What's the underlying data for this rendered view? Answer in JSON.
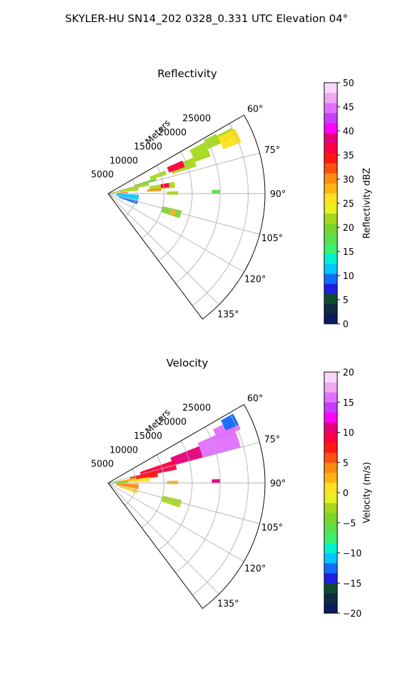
{
  "title": "SKYLER-HU  SN14_202  0328_0.331 UTC Elevation 04°",
  "chart_data": [
    {
      "type": "heatmap",
      "title": "Reflectivity",
      "projection": "polar-sector",
      "theta_range_deg": [
        60,
        143
      ],
      "r_range_m": [
        0,
        28000
      ],
      "angle_ticks": [
        "60°",
        "75°",
        "90°",
        "105°",
        "120°",
        "135°"
      ],
      "angle_tick_values": [
        60,
        75,
        90,
        105,
        120,
        135
      ],
      "radial_ticks": [
        5000,
        10000,
        15000,
        20000,
        25000
      ],
      "radial_tick_labels": [
        "5000",
        "10000",
        "15000",
        "20000",
        "25000"
      ],
      "radial_label": "Meters",
      "grid": true,
      "colorbar": {
        "label": "Reflectivity dBZ",
        "min": 0,
        "max": 50,
        "ticks": [
          0,
          5,
          10,
          15,
          20,
          25,
          30,
          35,
          40,
          45,
          50
        ],
        "tick_labels": [
          "0",
          "5",
          "10",
          "15",
          "20",
          "25",
          "30",
          "35",
          "40",
          "45",
          "50"
        ],
        "colors": [
          "#0c1a5e",
          "#102a40",
          "#0f4d2e",
          "#1f1fe0",
          "#0f6ef7",
          "#00c8ff",
          "#00f0d0",
          "#3ef06e",
          "#5ae04a",
          "#7ad42e",
          "#a6d81e",
          "#e8f01e",
          "#ffe01e",
          "#ffb414",
          "#ff8c10",
          "#ff5010",
          "#ff1810",
          "#ff0040",
          "#e6007a",
          "#ff00ff",
          "#c83cff",
          "#e070ff",
          "#f0a8f0",
          "#f8d8f8"
        ]
      },
      "regions": [
        {
          "theta": [
            61,
            66
          ],
          "r": [
            19500,
            22000
          ],
          "value": 22
        },
        {
          "theta": [
            62,
            66
          ],
          "r": [
            21000,
            25000
          ],
          "value": 21
        },
        {
          "theta": [
            62,
            70
          ],
          "r": [
            16500,
            19500
          ],
          "value": 21
        },
        {
          "theta": [
            67,
            73
          ],
          "r": [
            12000,
            16500
          ],
          "value": 22
        },
        {
          "theta": [
            63,
            69
          ],
          "r": [
            22000,
            25500
          ],
          "value": 27
        },
        {
          "theta": [
            66,
            71
          ],
          "r": [
            11500,
            14500
          ],
          "value": 36
        },
        {
          "theta": [
            68,
            72
          ],
          "r": [
            8000,
            11000
          ],
          "value": 21
        },
        {
          "theta": [
            72,
            75
          ],
          "r": [
            5000,
            9000
          ],
          "value": 20
        },
        {
          "theta": [
            75,
            79
          ],
          "r": [
            2000,
            7500
          ],
          "value": 22
        },
        {
          "theta": [
            79,
            84
          ],
          "r": [
            600,
            5500
          ],
          "value": 21
        },
        {
          "theta": [
            80,
            85
          ],
          "r": [
            7500,
            12000
          ],
          "value": 22
        },
        {
          "theta": [
            80,
            84
          ],
          "r": [
            9500,
            11000
          ],
          "value": 37
        },
        {
          "theta": [
            84,
            87
          ],
          "r": [
            7000,
            9500
          ],
          "value": 31
        },
        {
          "theta": [
            86,
            89
          ],
          "r": [
            1500,
            3500
          ],
          "value": 33
        },
        {
          "theta": [
            84,
            89
          ],
          "r": [
            0,
            1200
          ],
          "value": 31
        },
        {
          "theta": [
            88,
            91
          ],
          "r": [
            10500,
            12500
          ],
          "value": 21
        },
        {
          "theta": [
            88,
            90
          ],
          "r": [
            18500,
            20000
          ],
          "value": 18
        },
        {
          "theta": [
            92,
            102
          ],
          "r": [
            1500,
            5500
          ],
          "value": 11
        },
        {
          "theta": [
            103,
            110
          ],
          "r": [
            2000,
            5500
          ],
          "value": 9
        },
        {
          "theta": [
            103,
            109
          ],
          "r": [
            10000,
            13500
          ],
          "value": 20
        },
        {
          "theta": [
            104,
            108
          ],
          "r": [
            11500,
            12500
          ],
          "value": 28
        }
      ]
    },
    {
      "type": "heatmap",
      "title": "Velocity",
      "projection": "polar-sector",
      "theta_range_deg": [
        60,
        143
      ],
      "r_range_m": [
        0,
        28000
      ],
      "angle_ticks": [
        "60°",
        "75°",
        "90°",
        "105°",
        "120°",
        "135°"
      ],
      "angle_tick_values": [
        60,
        75,
        90,
        105,
        120,
        135
      ],
      "radial_ticks": [
        5000,
        10000,
        15000,
        20000,
        25000
      ],
      "radial_tick_labels": [
        "5000",
        "10000",
        "15000",
        "20000",
        "25000"
      ],
      "radial_label": "Meters",
      "grid": true,
      "colorbar": {
        "label": "Velocity (m/s)",
        "min": -20,
        "max": 20,
        "ticks": [
          -20,
          -15,
          -10,
          -5,
          0,
          5,
          10,
          15,
          20
        ],
        "tick_labels": [
          "−20",
          "−15",
          "−10",
          "−5",
          "0",
          "5",
          "10",
          "15",
          "20"
        ],
        "colors": [
          "#0c1a5e",
          "#102a40",
          "#0f4d2e",
          "#1f1fe0",
          "#0f6ef7",
          "#00c8ff",
          "#00f0d0",
          "#3ef06e",
          "#5ae04a",
          "#7ad42e",
          "#a6d81e",
          "#e8f01e",
          "#ffe01e",
          "#ffb414",
          "#ff8c10",
          "#ff5010",
          "#ff1810",
          "#ff0040",
          "#e6007a",
          "#ff00ff",
          "#c83cff",
          "#e070ff",
          "#f0a8f0",
          "#f8d8f8"
        ]
      },
      "regions": [
        {
          "theta": [
            63,
            68
          ],
          "r": [
            21000,
            25500
          ],
          "value": 15
        },
        {
          "theta": [
            61,
            66
          ],
          "r": [
            23000,
            25500
          ],
          "value": -12
        },
        {
          "theta": [
            66,
            75
          ],
          "r": [
            17500,
            24500
          ],
          "value": 15
        },
        {
          "theta": [
            68,
            75
          ],
          "r": [
            12000,
            17500
          ],
          "value": 10
        },
        {
          "theta": [
            71,
            79
          ],
          "r": [
            6000,
            12500
          ],
          "value": 9
        },
        {
          "theta": [
            76,
            83
          ],
          "r": [
            4000,
            9000
          ],
          "value": 7
        },
        {
          "theta": [
            79,
            87
          ],
          "r": [
            1000,
            5000
          ],
          "value": 2
        },
        {
          "theta": [
            82,
            88
          ],
          "r": [
            4000,
            7500
          ],
          "value": 0
        },
        {
          "theta": [
            83,
            89
          ],
          "r": [
            0,
            3500
          ],
          "value": -5
        },
        {
          "theta": [
            84,
            90
          ],
          "r": [
            0,
            1500
          ],
          "value": -8
        },
        {
          "theta": [
            88,
            91
          ],
          "r": [
            10500,
            12500
          ],
          "value": 2
        },
        {
          "theta": [
            88,
            90
          ],
          "r": [
            18500,
            20000
          ],
          "value": 10
        },
        {
          "theta": [
            92,
            102
          ],
          "r": [
            1500,
            5500
          ],
          "value": 4
        },
        {
          "theta": [
            103,
            110
          ],
          "r": [
            2000,
            5500
          ],
          "value": 0
        },
        {
          "theta": [
            103,
            109
          ],
          "r": [
            10000,
            13500
          ],
          "value": -3
        }
      ]
    }
  ]
}
